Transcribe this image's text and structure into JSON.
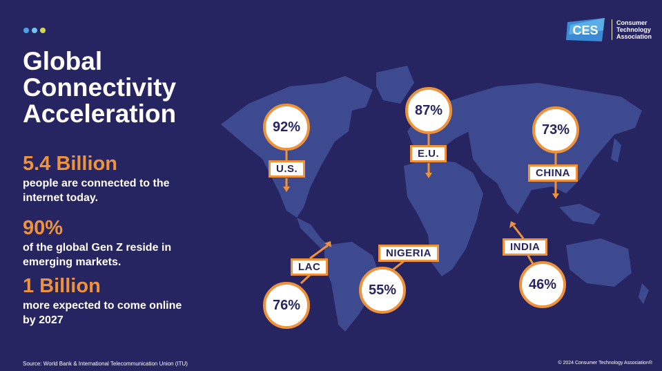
{
  "colors": {
    "background": "#262562",
    "accent": "#f0923a",
    "map": "#3d4a8f",
    "dots": [
      "#4aa3e8",
      "#6fc4f0",
      "#cfd94a"
    ]
  },
  "title": {
    "line1": "Global",
    "line2": "Connectivity",
    "line3": "Acceleration"
  },
  "stats": [
    {
      "value": "5.4 Billion",
      "desc": "people are connected to the internet today."
    },
    {
      "value": "90%",
      "desc": "of the global Gen Z reside in emerging markets."
    },
    {
      "value": "1 Billion",
      "desc": "more expected to come online by 2027"
    }
  ],
  "logo": {
    "mark": "CES",
    "line1": "Consumer",
    "line2": "Technology",
    "line3": "Association"
  },
  "regions": {
    "us": {
      "label": "U.S.",
      "value": "92%"
    },
    "eu": {
      "label": "E.U.",
      "value": "87%"
    },
    "china": {
      "label": "CHINA",
      "value": "73%"
    },
    "lac": {
      "label": "LAC",
      "value": "76%"
    },
    "nigeria": {
      "label": "NIGERIA",
      "value": "55%"
    },
    "india": {
      "label": "INDIA",
      "value": "46%"
    }
  },
  "footer": {
    "source": "Source: World Bank & International Telecommunication Union (ITU)",
    "copyright": "© 2024 Consumer Technology Association®"
  }
}
